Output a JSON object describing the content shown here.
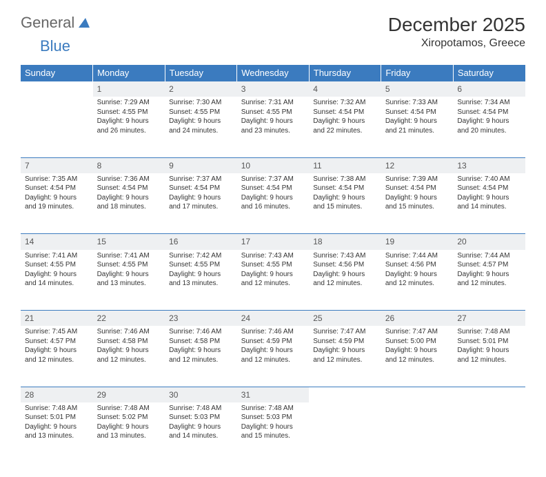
{
  "brand": {
    "word1": "General",
    "word2": "Blue",
    "logo_color": "#3b7bbf",
    "text_color": "#666666"
  },
  "title": "December 2025",
  "location": "Xiropotamos, Greece",
  "colors": {
    "header_bg": "#3b7bbf",
    "header_fg": "#ffffff",
    "daynum_bg": "#eef0f2",
    "border": "#3b7bbf",
    "body_text": "#333333",
    "page_bg": "#ffffff"
  },
  "fonts": {
    "title_size_pt": 28,
    "location_size_pt": 16,
    "header_size_pt": 13,
    "cell_size_pt": 10
  },
  "weekdays": [
    "Sunday",
    "Monday",
    "Tuesday",
    "Wednesday",
    "Thursday",
    "Friday",
    "Saturday"
  ],
  "weeks": [
    [
      null,
      {
        "n": "1",
        "sr": "Sunrise: 7:29 AM",
        "ss": "Sunset: 4:55 PM",
        "d1": "Daylight: 9 hours",
        "d2": "and 26 minutes."
      },
      {
        "n": "2",
        "sr": "Sunrise: 7:30 AM",
        "ss": "Sunset: 4:55 PM",
        "d1": "Daylight: 9 hours",
        "d2": "and 24 minutes."
      },
      {
        "n": "3",
        "sr": "Sunrise: 7:31 AM",
        "ss": "Sunset: 4:55 PM",
        "d1": "Daylight: 9 hours",
        "d2": "and 23 minutes."
      },
      {
        "n": "4",
        "sr": "Sunrise: 7:32 AM",
        "ss": "Sunset: 4:54 PM",
        "d1": "Daylight: 9 hours",
        "d2": "and 22 minutes."
      },
      {
        "n": "5",
        "sr": "Sunrise: 7:33 AM",
        "ss": "Sunset: 4:54 PM",
        "d1": "Daylight: 9 hours",
        "d2": "and 21 minutes."
      },
      {
        "n": "6",
        "sr": "Sunrise: 7:34 AM",
        "ss": "Sunset: 4:54 PM",
        "d1": "Daylight: 9 hours",
        "d2": "and 20 minutes."
      }
    ],
    [
      {
        "n": "7",
        "sr": "Sunrise: 7:35 AM",
        "ss": "Sunset: 4:54 PM",
        "d1": "Daylight: 9 hours",
        "d2": "and 19 minutes."
      },
      {
        "n": "8",
        "sr": "Sunrise: 7:36 AM",
        "ss": "Sunset: 4:54 PM",
        "d1": "Daylight: 9 hours",
        "d2": "and 18 minutes."
      },
      {
        "n": "9",
        "sr": "Sunrise: 7:37 AM",
        "ss": "Sunset: 4:54 PM",
        "d1": "Daylight: 9 hours",
        "d2": "and 17 minutes."
      },
      {
        "n": "10",
        "sr": "Sunrise: 7:37 AM",
        "ss": "Sunset: 4:54 PM",
        "d1": "Daylight: 9 hours",
        "d2": "and 16 minutes."
      },
      {
        "n": "11",
        "sr": "Sunrise: 7:38 AM",
        "ss": "Sunset: 4:54 PM",
        "d1": "Daylight: 9 hours",
        "d2": "and 15 minutes."
      },
      {
        "n": "12",
        "sr": "Sunrise: 7:39 AM",
        "ss": "Sunset: 4:54 PM",
        "d1": "Daylight: 9 hours",
        "d2": "and 15 minutes."
      },
      {
        "n": "13",
        "sr": "Sunrise: 7:40 AM",
        "ss": "Sunset: 4:54 PM",
        "d1": "Daylight: 9 hours",
        "d2": "and 14 minutes."
      }
    ],
    [
      {
        "n": "14",
        "sr": "Sunrise: 7:41 AM",
        "ss": "Sunset: 4:55 PM",
        "d1": "Daylight: 9 hours",
        "d2": "and 14 minutes."
      },
      {
        "n": "15",
        "sr": "Sunrise: 7:41 AM",
        "ss": "Sunset: 4:55 PM",
        "d1": "Daylight: 9 hours",
        "d2": "and 13 minutes."
      },
      {
        "n": "16",
        "sr": "Sunrise: 7:42 AM",
        "ss": "Sunset: 4:55 PM",
        "d1": "Daylight: 9 hours",
        "d2": "and 13 minutes."
      },
      {
        "n": "17",
        "sr": "Sunrise: 7:43 AM",
        "ss": "Sunset: 4:55 PM",
        "d1": "Daylight: 9 hours",
        "d2": "and 12 minutes."
      },
      {
        "n": "18",
        "sr": "Sunrise: 7:43 AM",
        "ss": "Sunset: 4:56 PM",
        "d1": "Daylight: 9 hours",
        "d2": "and 12 minutes."
      },
      {
        "n": "19",
        "sr": "Sunrise: 7:44 AM",
        "ss": "Sunset: 4:56 PM",
        "d1": "Daylight: 9 hours",
        "d2": "and 12 minutes."
      },
      {
        "n": "20",
        "sr": "Sunrise: 7:44 AM",
        "ss": "Sunset: 4:57 PM",
        "d1": "Daylight: 9 hours",
        "d2": "and 12 minutes."
      }
    ],
    [
      {
        "n": "21",
        "sr": "Sunrise: 7:45 AM",
        "ss": "Sunset: 4:57 PM",
        "d1": "Daylight: 9 hours",
        "d2": "and 12 minutes."
      },
      {
        "n": "22",
        "sr": "Sunrise: 7:46 AM",
        "ss": "Sunset: 4:58 PM",
        "d1": "Daylight: 9 hours",
        "d2": "and 12 minutes."
      },
      {
        "n": "23",
        "sr": "Sunrise: 7:46 AM",
        "ss": "Sunset: 4:58 PM",
        "d1": "Daylight: 9 hours",
        "d2": "and 12 minutes."
      },
      {
        "n": "24",
        "sr": "Sunrise: 7:46 AM",
        "ss": "Sunset: 4:59 PM",
        "d1": "Daylight: 9 hours",
        "d2": "and 12 minutes."
      },
      {
        "n": "25",
        "sr": "Sunrise: 7:47 AM",
        "ss": "Sunset: 4:59 PM",
        "d1": "Daylight: 9 hours",
        "d2": "and 12 minutes."
      },
      {
        "n": "26",
        "sr": "Sunrise: 7:47 AM",
        "ss": "Sunset: 5:00 PM",
        "d1": "Daylight: 9 hours",
        "d2": "and 12 minutes."
      },
      {
        "n": "27",
        "sr": "Sunrise: 7:48 AM",
        "ss": "Sunset: 5:01 PM",
        "d1": "Daylight: 9 hours",
        "d2": "and 12 minutes."
      }
    ],
    [
      {
        "n": "28",
        "sr": "Sunrise: 7:48 AM",
        "ss": "Sunset: 5:01 PM",
        "d1": "Daylight: 9 hours",
        "d2": "and 13 minutes."
      },
      {
        "n": "29",
        "sr": "Sunrise: 7:48 AM",
        "ss": "Sunset: 5:02 PM",
        "d1": "Daylight: 9 hours",
        "d2": "and 13 minutes."
      },
      {
        "n": "30",
        "sr": "Sunrise: 7:48 AM",
        "ss": "Sunset: 5:03 PM",
        "d1": "Daylight: 9 hours",
        "d2": "and 14 minutes."
      },
      {
        "n": "31",
        "sr": "Sunrise: 7:48 AM",
        "ss": "Sunset: 5:03 PM",
        "d1": "Daylight: 9 hours",
        "d2": "and 15 minutes."
      },
      null,
      null,
      null
    ]
  ]
}
